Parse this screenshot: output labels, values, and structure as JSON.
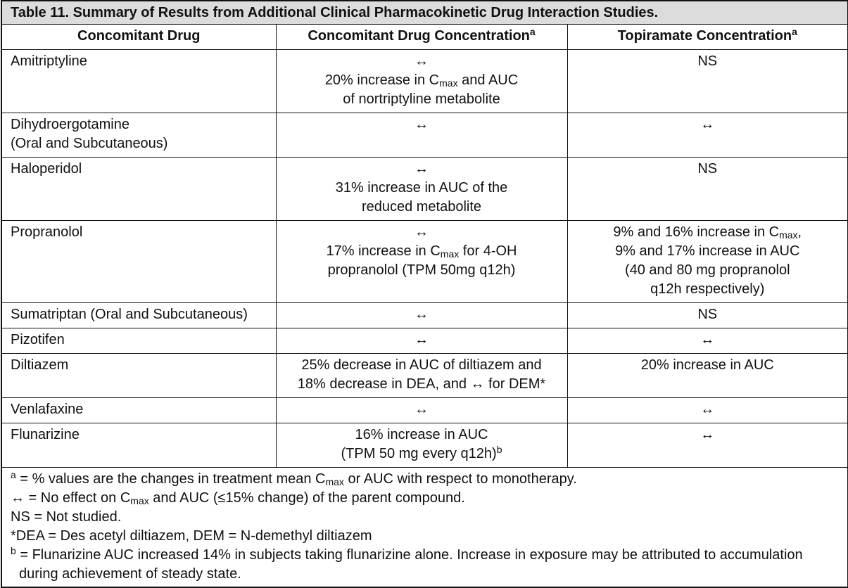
{
  "table": {
    "title": "Table 11. Summary of Results from Additional Clinical Pharmacokinetic Drug Interaction Studies.",
    "header": [
      [
        [
          "Concomitant Drug"
        ]
      ],
      [
        [
          "Concomitant Drug Concentration",
          {
            "sup": "a"
          }
        ]
      ],
      [
        [
          "Topiramate Concentration",
          {
            "sup": "a"
          }
        ]
      ]
    ],
    "rows": [
      [
        [
          [
            "Amitriptyline"
          ]
        ],
        [
          [
            "↔"
          ],
          [
            "20% increase in C",
            {
              "sub": "max"
            },
            " and AUC"
          ],
          [
            "of nortriptyline metabolite"
          ]
        ],
        [
          [
            "NS"
          ]
        ]
      ],
      [
        [
          [
            "Dihydroergotamine"
          ],
          [
            "(Oral and Subcutaneous)"
          ]
        ],
        [
          [
            "↔"
          ]
        ],
        [
          [
            "↔"
          ]
        ]
      ],
      [
        [
          [
            "Haloperidol"
          ]
        ],
        [
          [
            "↔"
          ],
          [
            "31% increase in AUC of the"
          ],
          [
            "reduced metabolite"
          ]
        ],
        [
          [
            "NS"
          ]
        ]
      ],
      [
        [
          [
            "Propranolol"
          ]
        ],
        [
          [
            "↔"
          ],
          [
            "17% increase in C",
            {
              "sub": "max"
            },
            " for 4-OH"
          ],
          [
            "propranolol (TPM 50mg q12h)"
          ]
        ],
        [
          [
            "9% and 16% increase in C",
            {
              "sub": "max"
            },
            ","
          ],
          [
            "9% and 17% increase in AUC"
          ],
          [
            "(40 and 80 mg propranolol"
          ],
          [
            "q12h respectively)"
          ]
        ]
      ],
      [
        [
          [
            "Sumatriptan (Oral and Subcutaneous)"
          ]
        ],
        [
          [
            "↔"
          ]
        ],
        [
          [
            "NS"
          ]
        ]
      ],
      [
        [
          [
            "Pizotifen"
          ]
        ],
        [
          [
            "↔"
          ]
        ],
        [
          [
            "↔"
          ]
        ]
      ],
      [
        [
          [
            "Diltiazem"
          ]
        ],
        [
          [
            "25% decrease in AUC of diltiazem and"
          ],
          [
            "18% decrease in DEA, and ↔ for DEM*"
          ]
        ],
        [
          [
            "20% increase in AUC"
          ]
        ]
      ],
      [
        [
          [
            "Venlafaxine"
          ]
        ],
        [
          [
            "↔"
          ]
        ],
        [
          [
            "↔"
          ]
        ]
      ],
      [
        [
          [
            "Flunarizine"
          ]
        ],
        [
          [
            "16% increase in AUC"
          ],
          [
            "(TPM 50 mg every q12h)",
            {
              "sup": "b"
            }
          ]
        ],
        [
          [
            "↔"
          ]
        ]
      ]
    ],
    "footnotes": [
      [
        {
          "sup": "a"
        },
        " = % values are the changes in treatment mean C",
        {
          "sub": "max"
        },
        " or AUC with respect to monotherapy."
      ],
      [
        "↔ = No effect on C",
        {
          "sub": "max"
        },
        " and AUC (≤15% change) of the parent compound."
      ],
      [
        "NS = Not studied."
      ],
      [
        "*DEA = Des acetyl diltiazem, DEM = N-demethyl diltiazem"
      ],
      [
        {
          "sup": "b"
        },
        " = Flunarizine AUC increased 14% in subjects taking flunarizine alone. Increase in exposure may be attributed to accumulation during achievement of steady state."
      ]
    ]
  }
}
